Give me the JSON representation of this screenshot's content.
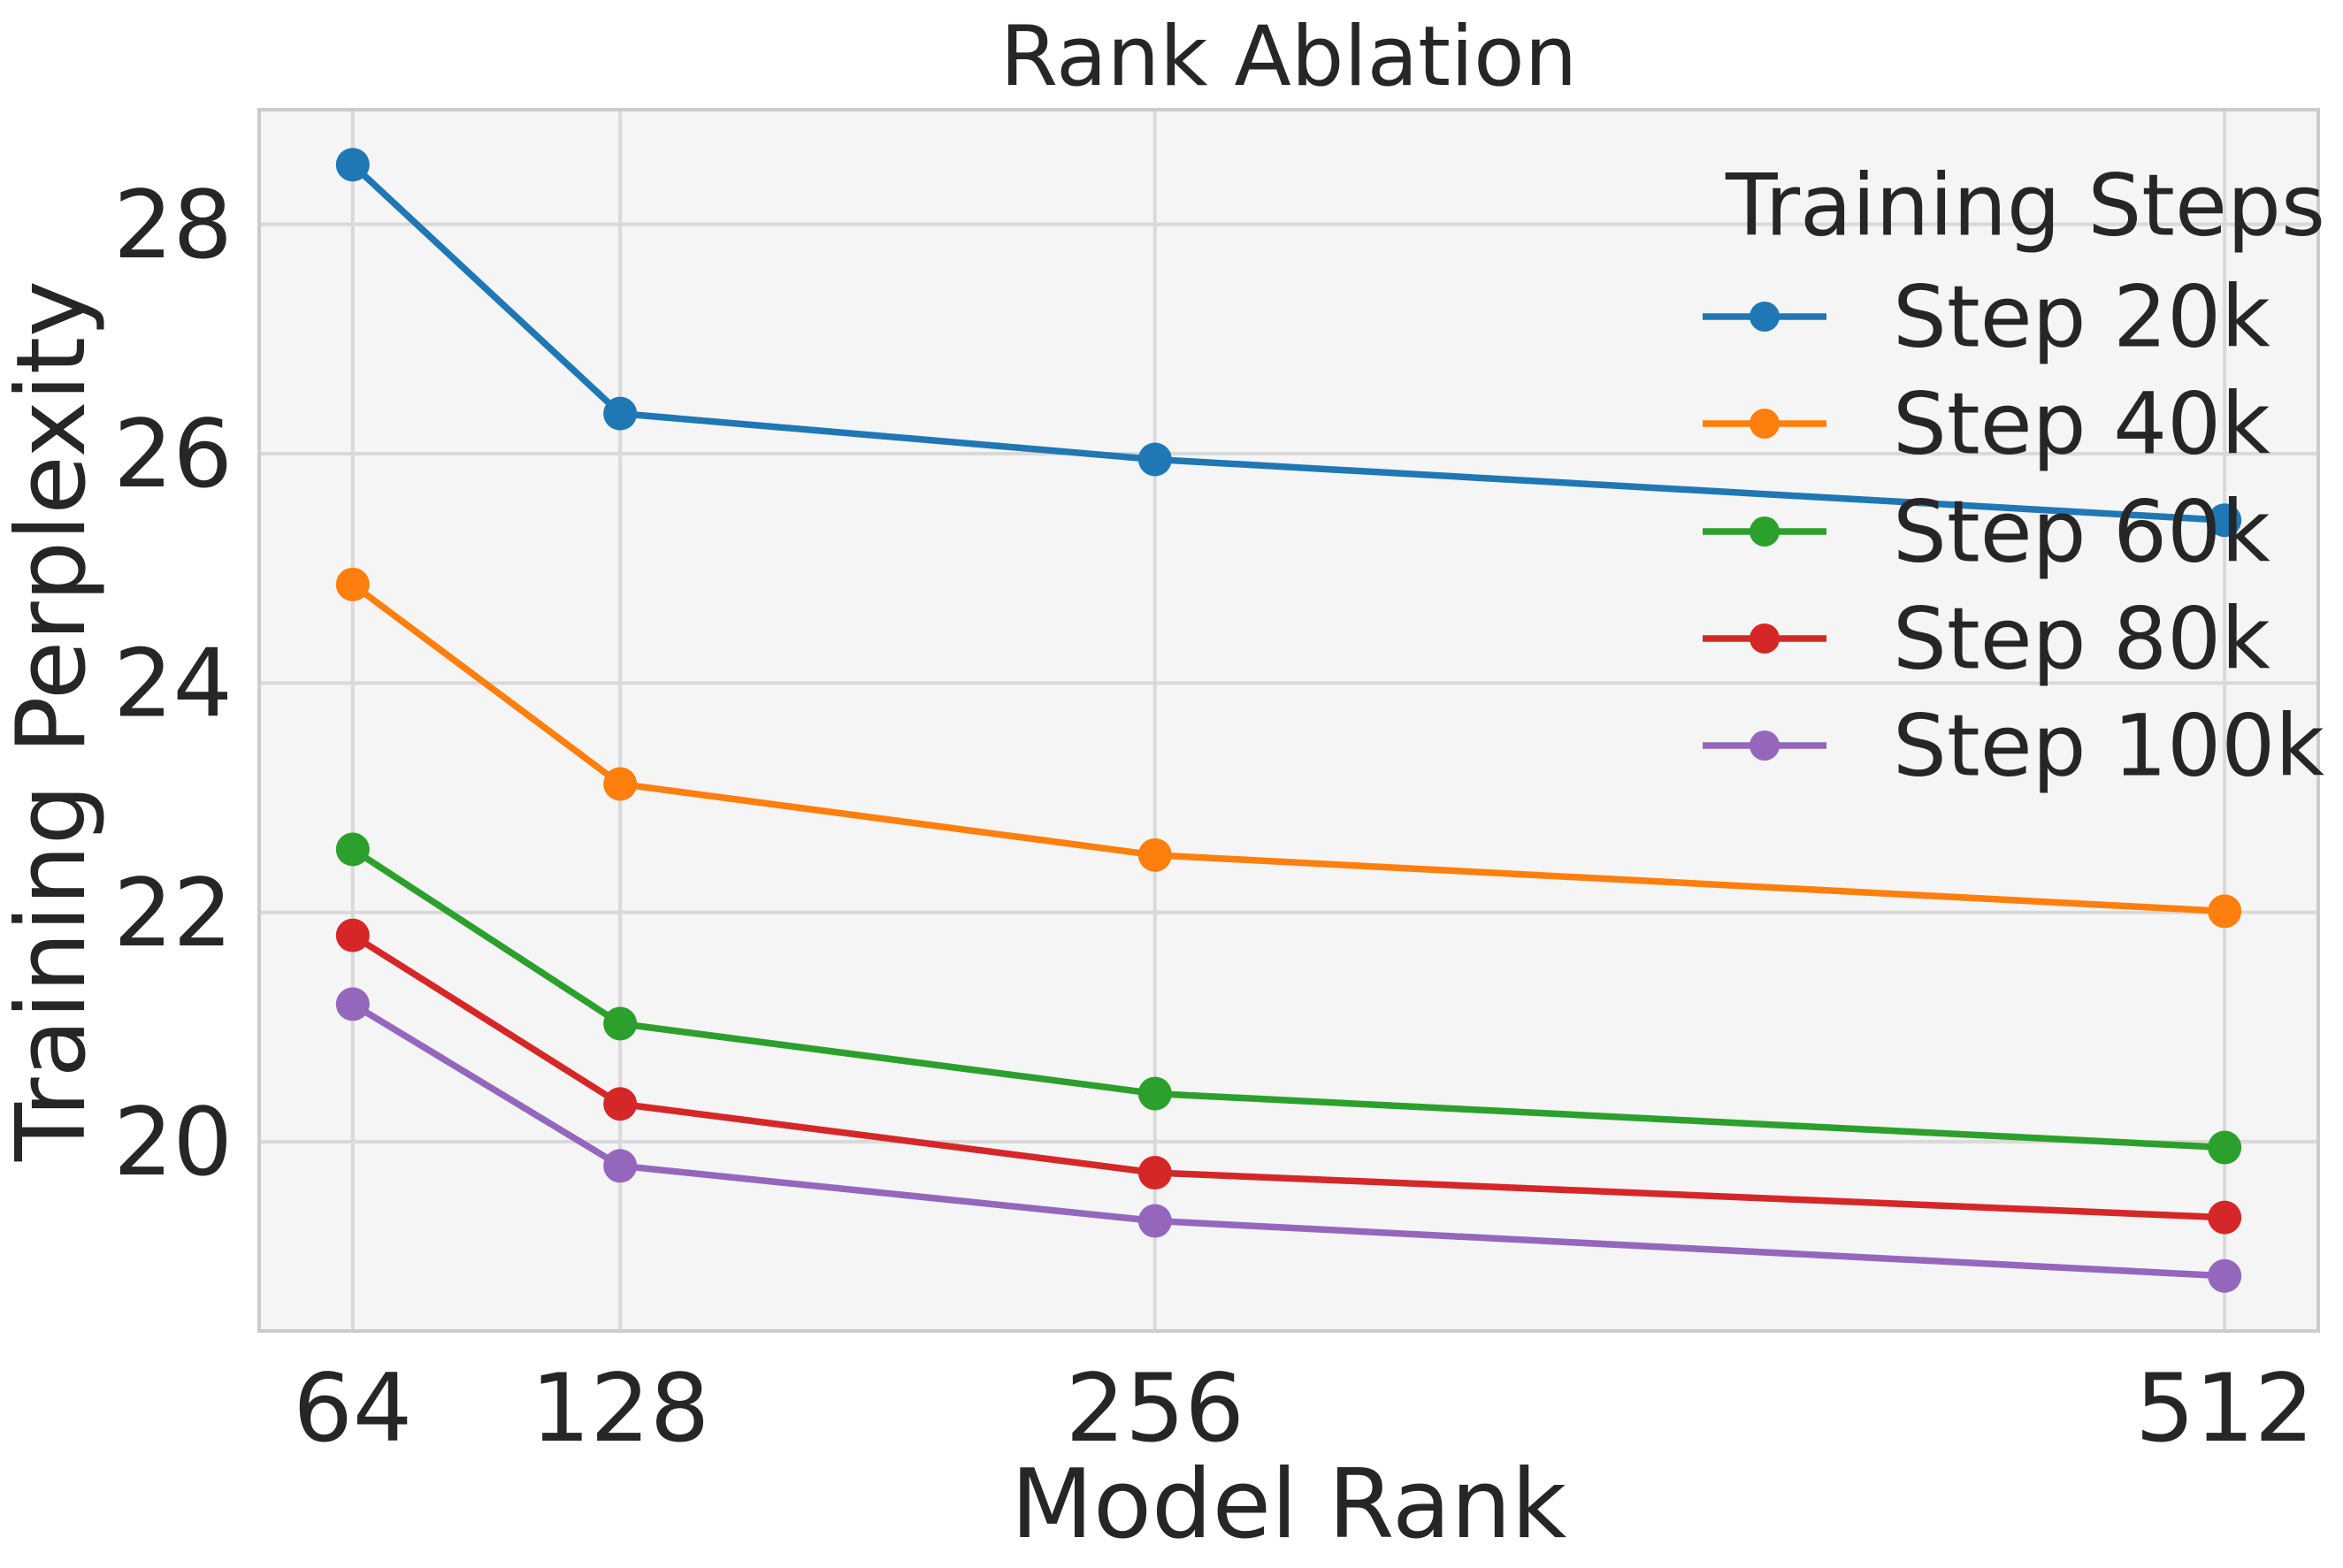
{
  "chart_data": {
    "type": "line",
    "title": "Rank Ablation",
    "xlabel": "Model Rank",
    "ylabel": "Training Perplexity",
    "legend_title": "Training Steps",
    "legend_position": "upper right",
    "grid": true,
    "x": [
      64,
      128,
      256,
      512
    ],
    "xtick_labels": [
      "64",
      "128",
      "256",
      "512"
    ],
    "ytick_values": [
      20,
      22,
      24,
      26,
      28
    ],
    "ytick_labels": [
      "20",
      "22",
      "24",
      "26",
      "28"
    ],
    "xlim": [
      41.6,
      534.4
    ],
    "ylim": [
      18.35,
      29.0
    ],
    "series": [
      {
        "name": "Step 20k",
        "color": "#1f77b4",
        "values": [
          28.52,
          26.35,
          25.95,
          25.42
        ]
      },
      {
        "name": "Step 40k",
        "color": "#ff7f0e",
        "values": [
          24.86,
          23.12,
          22.5,
          22.01
        ]
      },
      {
        "name": "Step 60k",
        "color": "#2ca02c",
        "values": [
          22.55,
          21.03,
          20.42,
          19.95
        ]
      },
      {
        "name": "Step 80k",
        "color": "#d62728",
        "values": [
          21.8,
          20.33,
          19.73,
          19.34
        ]
      },
      {
        "name": "Step 100k",
        "color": "#9467bd",
        "values": [
          21.2,
          19.79,
          19.31,
          18.83
        ]
      }
    ],
    "style_colors": {
      "axes_background": "#f5f5f5",
      "gridline": "#d9d9d9",
      "spine": "#cccccc",
      "text": "#262626"
    }
  }
}
